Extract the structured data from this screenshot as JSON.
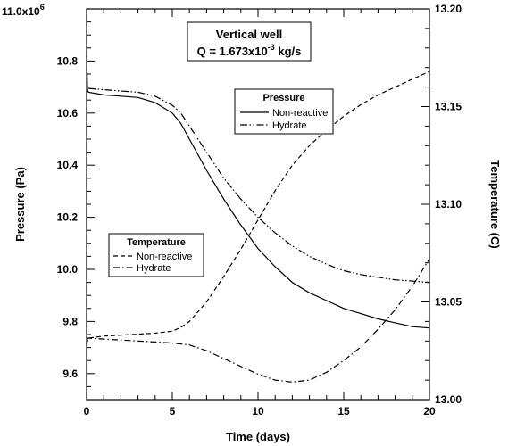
{
  "chart_data": {
    "type": "line",
    "title_box": {
      "line1": "Vertical well",
      "line2_prefix": "Q = 1.673x10",
      "line2_exp": "-3",
      "line2_suffix": " kg/s"
    },
    "xlabel": "Time (days)",
    "ylabel_left": "Pressure (Pa)",
    "ylabel_right": "Temperature (C)",
    "xlim": [
      0,
      20
    ],
    "ylim_left": [
      9.5,
      11.0
    ],
    "ylim_right": [
      13.0,
      13.2
    ],
    "x_ticks": [
      "0",
      "5",
      "10",
      "15",
      "20"
    ],
    "y_left_ticks": [
      "9.6",
      "9.8",
      "10.0",
      "10.2",
      "10.4",
      "10.6",
      "10.8"
    ],
    "y_left_top_label": {
      "base": "11.0x10",
      "exp": "6"
    },
    "y_right_ticks": [
      "13.00",
      "13.05",
      "13.10",
      "13.15",
      "13.20"
    ],
    "legend_pressure": {
      "title": "Pressure",
      "entries": [
        "Non-reactive",
        "Hydrate"
      ]
    },
    "legend_temperature": {
      "title": "Temperature",
      "entries": [
        "Non-reactive",
        "Hydrate"
      ]
    },
    "series": [
      {
        "name": "Non-reactive",
        "group": "Pressure",
        "axis": "left",
        "dash": "solid",
        "x": [
          0,
          0.05,
          0.1,
          1,
          2,
          3,
          4,
          5,
          5.5,
          6,
          7,
          8,
          9,
          10,
          11,
          12,
          13,
          14,
          15,
          16,
          17,
          18,
          19,
          20
        ],
        "y": [
          10.8,
          10.69,
          10.68,
          10.67,
          10.665,
          10.66,
          10.64,
          10.6,
          10.56,
          10.5,
          10.38,
          10.27,
          10.17,
          10.08,
          10.01,
          9.95,
          9.91,
          9.88,
          9.85,
          9.83,
          9.81,
          9.795,
          9.78,
          9.775
        ]
      },
      {
        "name": "Hydrate",
        "group": "Pressure",
        "axis": "left",
        "dash": "dash-dot-dot",
        "x": [
          0,
          0.05,
          0.1,
          1,
          2,
          3,
          4,
          5,
          5.5,
          6,
          7,
          8,
          9,
          10,
          11,
          12,
          13,
          14,
          15,
          16,
          17,
          18,
          19,
          20
        ],
        "y": [
          10.82,
          10.7,
          10.695,
          10.69,
          10.685,
          10.68,
          10.665,
          10.63,
          10.6,
          10.55,
          10.45,
          10.35,
          10.27,
          10.2,
          10.14,
          10.09,
          10.05,
          10.02,
          9.995,
          9.98,
          9.97,
          9.96,
          9.955,
          9.95
        ]
      },
      {
        "name": "Non-reactive",
        "group": "Temperature",
        "axis": "right",
        "dash": "dash",
        "x": [
          0,
          0.1,
          1,
          2,
          3,
          4,
          5,
          5.5,
          6,
          7,
          8,
          9,
          10,
          11,
          12,
          13,
          14,
          15,
          16,
          17,
          18,
          19,
          20
        ],
        "y": [
          13.0285,
          13.0315,
          13.0325,
          13.033,
          13.0335,
          13.034,
          13.035,
          13.037,
          13.04,
          13.05,
          13.063,
          13.077,
          13.092,
          13.107,
          13.12,
          13.13,
          13.138,
          13.145,
          13.151,
          13.156,
          13.16,
          13.164,
          13.168
        ]
      },
      {
        "name": "Hydrate",
        "group": "Temperature",
        "axis": "right",
        "dash": "dash-dot",
        "x": [
          0,
          0.1,
          1,
          2,
          3,
          4,
          5,
          6,
          7,
          8,
          9,
          10,
          11,
          12,
          13,
          14,
          15,
          16,
          17,
          18,
          19,
          20
        ],
        "y": [
          13.0305,
          13.0315,
          13.031,
          13.0305,
          13.03,
          13.0295,
          13.029,
          13.028,
          13.025,
          13.021,
          13.017,
          13.013,
          13.01,
          13.009,
          13.01,
          13.014,
          13.02,
          13.027,
          13.036,
          13.046,
          13.058,
          13.072
        ]
      }
    ]
  }
}
